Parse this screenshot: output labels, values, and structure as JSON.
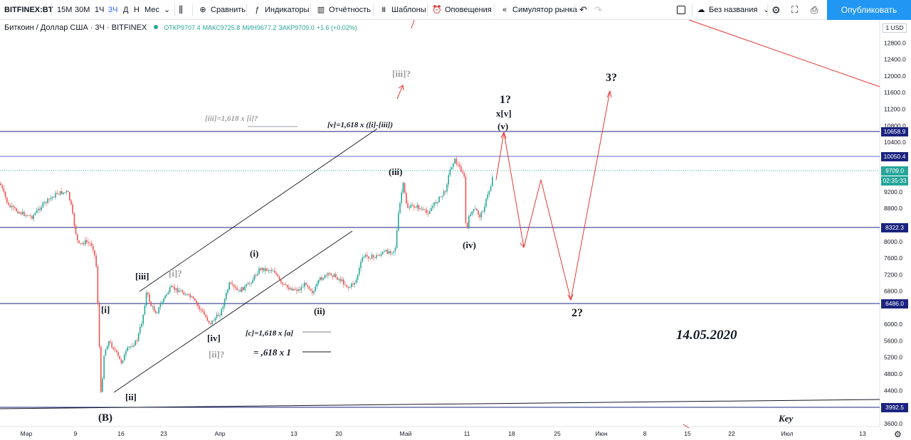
{
  "toolbar": {
    "symbol": "BITFINEX:BT",
    "intervals": [
      "15М",
      "30М",
      "1Ч",
      "3Ч",
      "Д",
      "Н",
      "Мес"
    ],
    "active_interval": "3Ч",
    "compare": "Сравнить",
    "indicators": "Индикаторы",
    "financials": "Отчётность",
    "templates": "Шаблоны",
    "alerts": "Оповещения",
    "replay": "Симулятор рынка",
    "layout_name": "Без названия",
    "publish": "Опубликовать"
  },
  "legend": {
    "title": "Биткоин / Доллар США · 3Ч · BITFINEX",
    "open": "ОТКР9707.4",
    "high": "МАКС9725.8",
    "low": "МИН9677.2",
    "close": "ЗАКР9709.0",
    "change": "+1.6 (+0.02%)"
  },
  "price_axis": {
    "currency": "1 USD",
    "ticks": [
      "12800.0",
      "12400.0",
      "12000.0",
      "11600.0",
      "11200.0",
      "10800.0",
      "10400.0",
      "9200.0",
      "8800.0",
      "8000.0",
      "7600.0",
      "7200.0",
      "6800.0",
      "6000.0",
      "5600.0",
      "5200.0",
      "4800.0",
      "4400.0",
      "3600.0"
    ],
    "boxes": [
      {
        "label": "10658.9",
        "color": "#1a237e"
      },
      {
        "label": "10050.4",
        "color": "#1a237e"
      },
      {
        "label": "9709.0",
        "color": "#26a69a"
      },
      {
        "label": "02:35:33",
        "color": "#26a69a"
      },
      {
        "label": "8322.3",
        "color": "#1a237e"
      },
      {
        "label": "6486.0",
        "color": "#1a237e"
      },
      {
        "label": "3992.5",
        "color": "#1a237e"
      }
    ]
  },
  "time_axis": {
    "ticks": [
      "Мар",
      "9",
      "16",
      "23",
      "Апр",
      "13",
      "20",
      "Май",
      "11",
      "18",
      "25",
      "Июн",
      "8",
      "15",
      "22",
      "Июл",
      "13"
    ]
  },
  "annotations": {
    "fib_note_1": "[iii]=1,618 x [i]?",
    "fib_note_2": "[v]=1,618 x ([i]-[iii])",
    "fib_note_3": "[c]=1,618 x [a]",
    "fib_note_4": "= ,618 x 1",
    "date_note": "14.05.2020",
    "key_note": "Key",
    "waves": {
      "iii_q_top": "[iii]?",
      "one_q": "1?",
      "xv": "x[v]",
      "v": "(v)",
      "three_q": "3?",
      "iii_paren": "(iii)",
      "iv_paren": "(iv)",
      "i_paren": "(i)",
      "ii_paren": "(ii)",
      "iii_bracket": "[iii]",
      "i_q": "[i]?",
      "i_bracket": "[i]",
      "iv_bracket": "[iv]",
      "ii_q": "[ii]?",
      "ii_bracket": "[ii]",
      "B": "(B)",
      "two_q": "2?"
    }
  },
  "colors": {
    "up": "#26a69a",
    "down": "#ef5350",
    "levels": "#1a237e",
    "forecast": "#e53935",
    "accent": "#2962ff",
    "publish": "#2196f3"
  }
}
